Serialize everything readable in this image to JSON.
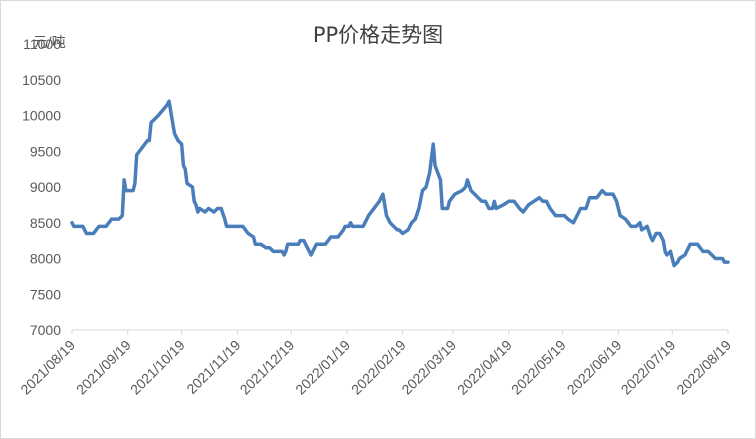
{
  "chart_data": {
    "type": "line",
    "title": "PP价格走势图",
    "unit_label": "元/吨",
    "ylim": [
      7000,
      11000
    ],
    "yticks": [
      7000,
      7500,
      8000,
      8500,
      9000,
      9500,
      10000,
      10500,
      11000
    ],
    "xlim": [
      "2021/08/19",
      "2022/08/19"
    ],
    "xticks": [
      "2021/08/19",
      "2021/09/19",
      "2021/10/19",
      "2021/11/19",
      "2021/12/19",
      "2022/01/19",
      "2022/02/19",
      "2022/03/19",
      "2022/04/19",
      "2022/05/19",
      "2022/06/19",
      "2022/07/19",
      "2022/08/19"
    ],
    "grid": false,
    "legend": "none",
    "color": "#4a7ebb",
    "series": [
      {
        "name": "",
        "points": [
          [
            "2021/08/19",
            8500
          ],
          [
            "2021/08/20",
            8450
          ],
          [
            "2021/08/25",
            8450
          ],
          [
            "2021/08/27",
            8350
          ],
          [
            "2021/08/31",
            8350
          ],
          [
            "2021/09/03",
            8450
          ],
          [
            "2021/09/07",
            8450
          ],
          [
            "2021/09/10",
            8550
          ],
          [
            "2021/09/14",
            8550
          ],
          [
            "2021/09/16",
            8600
          ],
          [
            "2021/09/17",
            9100
          ],
          [
            "2021/09/18",
            8950
          ],
          [
            "2021/09/22",
            8950
          ],
          [
            "2021/09/23",
            9050
          ],
          [
            "2021/09/24",
            9450
          ],
          [
            "2021/09/27",
            9550
          ],
          [
            "2021/09/30",
            9650
          ],
          [
            "2021/10/01",
            9650
          ],
          [
            "2021/10/02",
            9900
          ],
          [
            "2021/10/06",
            10000
          ],
          [
            "2021/10/11",
            10150
          ],
          [
            "2021/10/12",
            10200
          ],
          [
            "2021/10/13",
            10050
          ],
          [
            "2021/10/15",
            9750
          ],
          [
            "2021/10/17",
            9650
          ],
          [
            "2021/10/19",
            9600
          ],
          [
            "2021/10/20",
            9300
          ],
          [
            "2021/10/21",
            9250
          ],
          [
            "2021/10/22",
            9050
          ],
          [
            "2021/10/25",
            9000
          ],
          [
            "2021/10/26",
            8800
          ],
          [
            "2021/10/27",
            8750
          ],
          [
            "2021/10/28",
            8650
          ],
          [
            "2021/10/29",
            8700
          ],
          [
            "2021/11/01",
            8650
          ],
          [
            "2021/11/03",
            8700
          ],
          [
            "2021/11/06",
            8650
          ],
          [
            "2021/11/08",
            8700
          ],
          [
            "2021/11/10",
            8700
          ],
          [
            "2021/11/12",
            8550
          ],
          [
            "2021/11/13",
            8450
          ],
          [
            "2021/11/22",
            8450
          ],
          [
            "2021/11/25",
            8350
          ],
          [
            "2021/11/28",
            8300
          ],
          [
            "2021/11/29",
            8200
          ],
          [
            "2021/12/02",
            8200
          ],
          [
            "2021/12/05",
            8150
          ],
          [
            "2021/12/07",
            8150
          ],
          [
            "2021/12/09",
            8100
          ],
          [
            "2021/12/14",
            8100
          ],
          [
            "2021/12/15",
            8050
          ],
          [
            "2021/12/16",
            8100
          ],
          [
            "2021/12/17",
            8200
          ],
          [
            "2021/12/20",
            8200
          ],
          [
            "2021/12/23",
            8200
          ],
          [
            "2021/12/24",
            8250
          ],
          [
            "2021/12/26",
            8250
          ],
          [
            "2021/12/28",
            8150
          ],
          [
            "2021/12/30",
            8050
          ],
          [
            "2022/01/02",
            8200
          ],
          [
            "2022/01/07",
            8200
          ],
          [
            "2022/01/10",
            8300
          ],
          [
            "2022/01/14",
            8300
          ],
          [
            "2022/01/17",
            8400
          ],
          [
            "2022/01/18",
            8450
          ],
          [
            "2022/01/20",
            8450
          ],
          [
            "2022/01/21",
            8500
          ],
          [
            "2022/01/22",
            8450
          ],
          [
            "2022/01/25",
            8450
          ],
          [
            "2022/01/28",
            8450
          ],
          [
            "2022/01/31",
            8600
          ],
          [
            "2022/02/03",
            8700
          ],
          [
            "2022/02/06",
            8800
          ],
          [
            "2022/02/08",
            8900
          ],
          [
            "2022/02/10",
            8600
          ],
          [
            "2022/02/12",
            8500
          ],
          [
            "2022/02/14",
            8450
          ],
          [
            "2022/02/16",
            8400
          ],
          [
            "2022/02/17",
            8400
          ],
          [
            "2022/02/19",
            8350
          ],
          [
            "2022/02/22",
            8400
          ],
          [
            "2022/02/24",
            8500
          ],
          [
            "2022/02/26",
            8550
          ],
          [
            "2022/02/28",
            8700
          ],
          [
            "2022/03/02",
            8950
          ],
          [
            "2022/03/04",
            9000
          ],
          [
            "2022/03/06",
            9200
          ],
          [
            "2022/03/08",
            9600
          ],
          [
            "2022/03/09",
            9300
          ],
          [
            "2022/03/12",
            9100
          ],
          [
            "2022/03/13",
            8700
          ],
          [
            "2022/03/16",
            8700
          ],
          [
            "2022/03/17",
            8800
          ],
          [
            "2022/03/20",
            8900
          ],
          [
            "2022/03/24",
            8950
          ],
          [
            "2022/03/26",
            9000
          ],
          [
            "2022/03/27",
            9100
          ],
          [
            "2022/03/29",
            8950
          ],
          [
            "2022/03/31",
            8900
          ],
          [
            "2022/04/02",
            8850
          ],
          [
            "2022/04/04",
            8800
          ],
          [
            "2022/04/06",
            8800
          ],
          [
            "2022/04/08",
            8700
          ],
          [
            "2022/04/10",
            8700
          ],
          [
            "2022/04/11",
            8800
          ],
          [
            "2022/04/12",
            8700
          ],
          [
            "2022/04/16",
            8750
          ],
          [
            "2022/04/19",
            8800
          ],
          [
            "2022/04/22",
            8800
          ],
          [
            "2022/04/25",
            8700
          ],
          [
            "2022/04/27",
            8650
          ],
          [
            "2022/04/30",
            8750
          ],
          [
            "2022/05/03",
            8800
          ],
          [
            "2022/05/06",
            8850
          ],
          [
            "2022/05/08",
            8800
          ],
          [
            "2022/05/10",
            8800
          ],
          [
            "2022/05/12",
            8700
          ],
          [
            "2022/05/15",
            8600
          ],
          [
            "2022/05/20",
            8600
          ],
          [
            "2022/05/22",
            8550
          ],
          [
            "2022/05/25",
            8500
          ],
          [
            "2022/05/27",
            8600
          ],
          [
            "2022/05/29",
            8700
          ],
          [
            "2022/06/01",
            8700
          ],
          [
            "2022/06/03",
            8850
          ],
          [
            "2022/06/07",
            8850
          ],
          [
            "2022/06/10",
            8950
          ],
          [
            "2022/06/12",
            8900
          ],
          [
            "2022/06/16",
            8900
          ],
          [
            "2022/06/18",
            8800
          ],
          [
            "2022/06/20",
            8600
          ],
          [
            "2022/06/23",
            8550
          ],
          [
            "2022/06/26",
            8450
          ],
          [
            "2022/06/29",
            8450
          ],
          [
            "2022/07/01",
            8500
          ],
          [
            "2022/07/02",
            8400
          ],
          [
            "2022/07/05",
            8450
          ],
          [
            "2022/07/07",
            8300
          ],
          [
            "2022/07/08",
            8250
          ],
          [
            "2022/07/10",
            8350
          ],
          [
            "2022/07/12",
            8350
          ],
          [
            "2022/07/14",
            8250
          ],
          [
            "2022/07/15",
            8100
          ],
          [
            "2022/07/16",
            8050
          ],
          [
            "2022/07/18",
            8100
          ],
          [
            "2022/07/19",
            8000
          ],
          [
            "2022/07/20",
            7900
          ],
          [
            "2022/07/22",
            7950
          ],
          [
            "2022/07/23",
            8000
          ],
          [
            "2022/07/26",
            8050
          ],
          [
            "2022/07/29",
            8200
          ],
          [
            "2022/08/02",
            8200
          ],
          [
            "2022/08/05",
            8100
          ],
          [
            "2022/08/08",
            8100
          ],
          [
            "2022/08/12",
            8000
          ],
          [
            "2022/08/16",
            8000
          ],
          [
            "2022/08/17",
            7950
          ],
          [
            "2022/08/19",
            7950
          ]
        ]
      }
    ]
  }
}
